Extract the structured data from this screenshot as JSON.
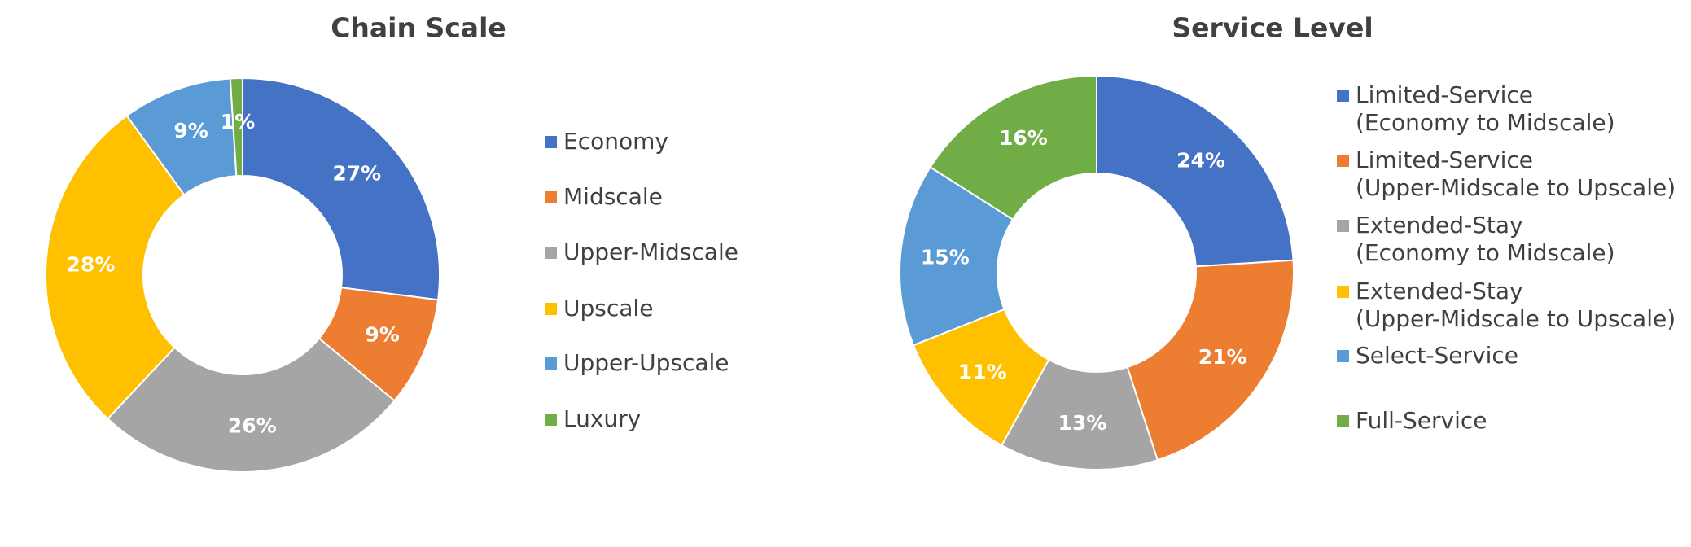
{
  "chart_data": [
    {
      "type": "donut",
      "title": "Chain Scale",
      "categories": [
        "Economy",
        "Midscale",
        "Upper-Midscale",
        "Upscale",
        "Upper-Upscale",
        "Luxury"
      ],
      "values": [
        27,
        9,
        26,
        28,
        9,
        1
      ],
      "value_labels": [
        "27%",
        "9%",
        "26%",
        "28%",
        "9%",
        "1%"
      ],
      "colors": [
        "#4472c4",
        "#ed7d31",
        "#a5a5a5",
        "#ffc000",
        "#5b9bd5",
        "#70ad47"
      ]
    },
    {
      "type": "donut",
      "title": "Service Level",
      "categories": [
        "Limited-Service\n(Economy to Midscale)",
        "Limited-Service\n(Upper-Midscale to Upscale)",
        "Extended-Stay\n(Economy to Midscale)",
        "Extended-Stay\n(Upper-Midscale to Upscale)",
        "Select-Service",
        "Full-Service"
      ],
      "values": [
        24,
        21,
        13,
        11,
        15,
        16
      ],
      "value_labels": [
        "24%",
        "21%",
        "13%",
        "11%",
        "15%",
        "16%"
      ],
      "colors": [
        "#4472c4",
        "#ed7d31",
        "#a5a5a5",
        "#ffc000",
        "#5b9bd5",
        "#70ad47"
      ]
    }
  ]
}
